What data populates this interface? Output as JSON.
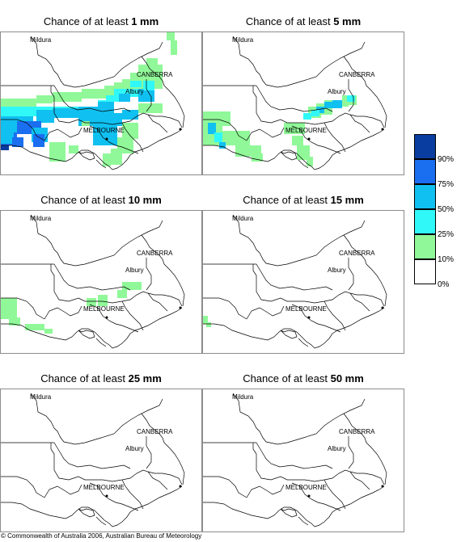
{
  "panels": [
    {
      "title_prefix": "Chance of at least ",
      "amount": "1 mm"
    },
    {
      "title_prefix": "Chance of at least ",
      "amount": "5 mm"
    },
    {
      "title_prefix": "Chance of at least ",
      "amount": "10 mm"
    },
    {
      "title_prefix": "Chance of at least ",
      "amount": "15 mm"
    },
    {
      "title_prefix": "Chance of at least ",
      "amount": "25 mm"
    },
    {
      "title_prefix": "Chance of at least ",
      "amount": "50 mm"
    }
  ],
  "map_labels": {
    "mildura": "Mildura",
    "canberra": "CANBERRA",
    "albury": "Albury",
    "melbourne": "MELBOURNE"
  },
  "legend": {
    "ticks": [
      "90%",
      "75%",
      "50%",
      "25%",
      "10%",
      "0%"
    ],
    "colors": [
      "#0a3da0",
      "#1a6ef0",
      "#10c0f0",
      "#30f8f8",
      "#90f898",
      "#ffffff"
    ]
  },
  "footer": {
    "copyright": "© Commonwealth of Australia 2006, Australian Bureau of Meteorology"
  }
}
